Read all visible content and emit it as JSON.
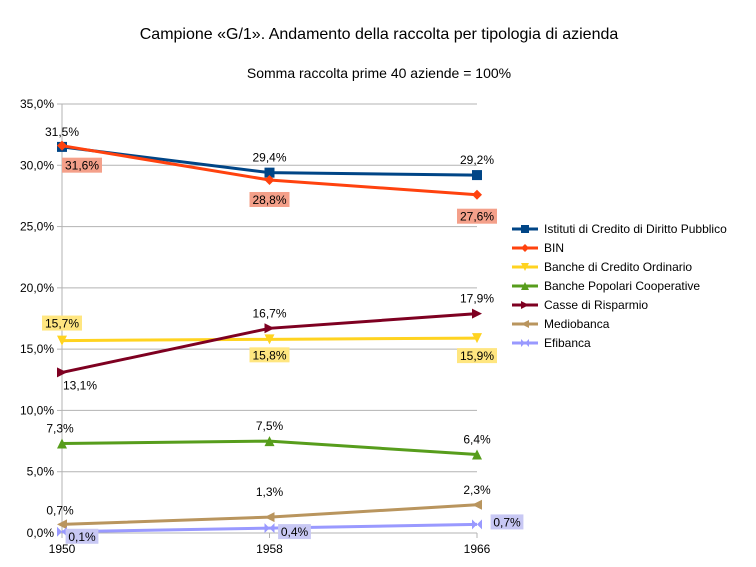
{
  "chart_data": {
    "type": "line",
    "title": "Campione «G/1». Andamento della raccolta per tipologia di azienda",
    "subtitle": "Somma raccolta prime 40 aziende = 100%",
    "x": [
      "1950",
      "1958",
      "1966"
    ],
    "ylim": [
      0,
      35
    ],
    "yticks": [
      "0,0%",
      "5,0%",
      "10,0%",
      "15,0%",
      "20,0%",
      "25,0%",
      "30,0%",
      "35,0%"
    ],
    "grid": "horizontal",
    "legend_position": "right",
    "series": [
      {
        "name": "Istituti di Credito di Diritto Pubblico",
        "color": "#004586",
        "marker": "square",
        "values": [
          31.5,
          29.4,
          29.2
        ],
        "labels": [
          "31,5%",
          "29,4%",
          "29,2%"
        ],
        "label_bg": ""
      },
      {
        "name": "BIN",
        "color": "#ff420e",
        "marker": "diamond",
        "values": [
          31.6,
          28.8,
          27.6
        ],
        "labels": [
          "31,6%",
          "28,8%",
          "27,6%"
        ],
        "label_bg": "#f4a08a"
      },
      {
        "name": "Banche di Credito Ordinario",
        "color": "#ffd320",
        "marker": "triangle-down",
        "values": [
          15.7,
          15.8,
          15.9
        ],
        "labels": [
          "15,7%",
          "15,8%",
          "15,9%"
        ],
        "label_bg": "#ffe680"
      },
      {
        "name": "Banche Popolari Cooperative",
        "color": "#579d1c",
        "marker": "triangle-up",
        "values": [
          7.3,
          7.5,
          6.4
        ],
        "labels": [
          "7,3%",
          "7,5%",
          "6,4%"
        ],
        "label_bg": ""
      },
      {
        "name": "Casse di Risparmio",
        "color": "#7e0021",
        "marker": "triangle-right",
        "values": [
          13.1,
          16.7,
          17.9
        ],
        "labels": [
          "13,1%",
          "16,7%",
          "17,9%"
        ],
        "label_bg": ""
      },
      {
        "name": "Mediobanca",
        "color": "#b9955e",
        "marker": "triangle-left",
        "values": [
          0.7,
          1.3,
          2.3
        ],
        "labels": [
          "0,7%",
          "1,3%",
          "2,3%"
        ],
        "label_bg": ""
      },
      {
        "name": "Efibanca",
        "color": "#9999ff",
        "marker": "bowtie",
        "values": [
          0.1,
          0.4,
          0.7
        ],
        "labels": [
          "0,1%",
          "0,4%",
          "0,7%"
        ],
        "label_bg": "#c8c8f4"
      }
    ]
  }
}
